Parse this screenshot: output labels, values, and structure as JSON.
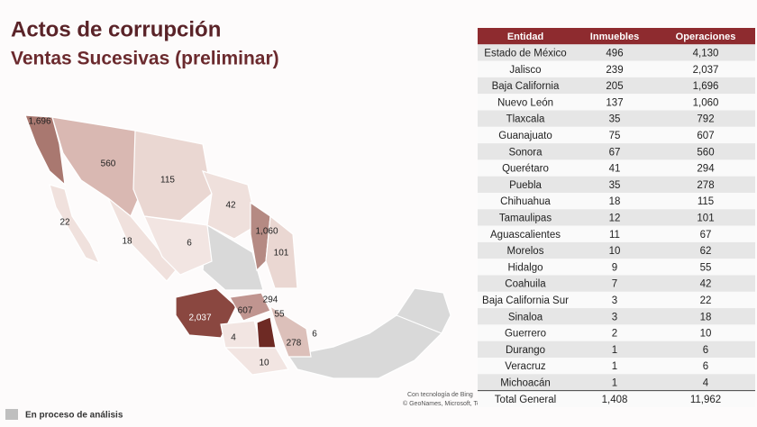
{
  "header": {
    "title": "Actos de corrupción",
    "subtitle": "Ventas Sucesivas (preliminar)"
  },
  "table": {
    "columns": [
      "Entidad",
      "Inmuebles",
      "Operaciones"
    ],
    "rows": [
      [
        "Estado de México",
        "496",
        "4,130"
      ],
      [
        "Jalisco",
        "239",
        "2,037"
      ],
      [
        "Baja California",
        "205",
        "1,696"
      ],
      [
        "Nuevo León",
        "137",
        "1,060"
      ],
      [
        "Tlaxcala",
        "35",
        "792"
      ],
      [
        "Guanajuato",
        "75",
        "607"
      ],
      [
        "Sonora",
        "67",
        "560"
      ],
      [
        "Querétaro",
        "41",
        "294"
      ],
      [
        "Puebla",
        "35",
        "278"
      ],
      [
        "Chihuahua",
        "18",
        "115"
      ],
      [
        "Tamaulipas",
        "12",
        "101"
      ],
      [
        "Aguascalientes",
        "11",
        "67"
      ],
      [
        "Morelos",
        "10",
        "62"
      ],
      [
        "Hidalgo",
        "9",
        "55"
      ],
      [
        "Coahuila",
        "7",
        "42"
      ],
      [
        "Baja California Sur",
        "3",
        "22"
      ],
      [
        "Sinaloa",
        "3",
        "18"
      ],
      [
        "Guerrero",
        "2",
        "10"
      ],
      [
        "Durango",
        "1",
        "6"
      ],
      [
        "Veracruz",
        "1",
        "6"
      ],
      [
        "Michoacán",
        "1",
        "4"
      ]
    ],
    "total": [
      "Total General",
      "1,408",
      "11,962"
    ]
  },
  "map": {
    "attribution": [
      "Con tecnología de Bing",
      "© GeoNames, Microsoft, TomTom"
    ],
    "legend": "En proceso de análisis"
  }
}
